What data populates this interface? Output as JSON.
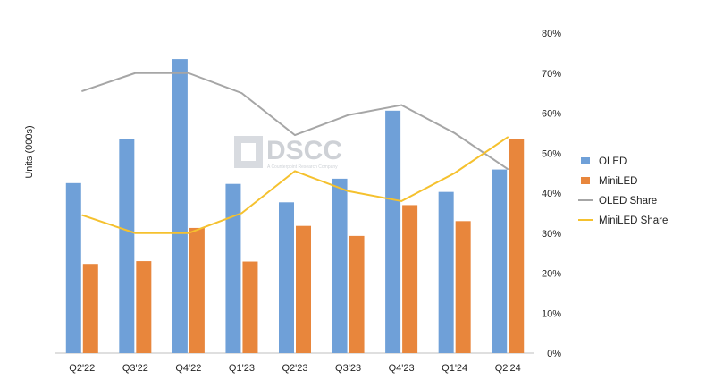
{
  "chart_data": {
    "type": "bar",
    "title": "",
    "ylabel": "Units (000s)",
    "y2lim": [
      0,
      80
    ],
    "y2ticks": [
      "0%",
      "10%",
      "20%",
      "30%",
      "40%",
      "50%",
      "60%",
      "70%",
      "80%"
    ],
    "categories": [
      "Q2'22",
      "Q3'22",
      "Q4'22",
      "Q1'23",
      "Q2'23",
      "Q3'23",
      "Q4'23",
      "Q1'24",
      "Q2'24"
    ],
    "series": [
      {
        "name": "OLED",
        "kind": "bar",
        "axis": "primary",
        "color": "#6fa0d8",
        "values": [
          42.5,
          53.5,
          73.5,
          42.3,
          37.7,
          43.6,
          60.6,
          40.3,
          45.9
        ]
      },
      {
        "name": "MiniLED",
        "kind": "bar",
        "axis": "primary",
        "color": "#e8863c",
        "values": [
          22.3,
          23.0,
          31.3,
          22.9,
          31.8,
          29.3,
          37.0,
          33.0,
          53.6
        ]
      },
      {
        "name": "OLED Share",
        "kind": "line",
        "axis": "secondary",
        "color": "#a6a6a6",
        "values": [
          65.5,
          70.0,
          70.0,
          65.0,
          54.5,
          59.5,
          62.0,
          55.0,
          46.0
        ]
      },
      {
        "name": "MiniLED Share",
        "kind": "line",
        "axis": "secondary",
        "color": "#f5c12e",
        "values": [
          34.5,
          30.0,
          30.0,
          35.0,
          45.5,
          40.5,
          38.0,
          45.0,
          54.0
        ]
      }
    ],
    "legend_position": "right",
    "grid": false
  },
  "watermark": {
    "brand": "DSCC",
    "tagline": "A Counterpoint Research Company"
  }
}
